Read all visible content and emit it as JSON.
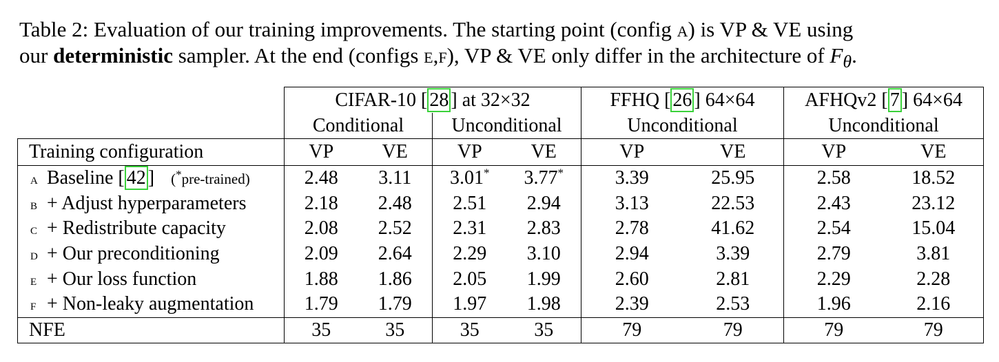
{
  "caption": {
    "p1": "Table 2: Evaluation of our training improvements. The starting point (config ",
    "letter_a": "a",
    "p2": ") is VP & VE using",
    "p3": "our ",
    "bold_word": "deterministic",
    "p4": " sampler. At the end (configs ",
    "letters_ef": "e,f",
    "p5": "), VP & VE only differ in the architecture of ",
    "f_theta": "F",
    "f_sub": "θ",
    "p6": "."
  },
  "groups": [
    {
      "name_pre": "CIFAR-10 ",
      "cite": "28",
      "name_post": " at 32×32"
    },
    {
      "name_pre": "FFHQ ",
      "cite": "26",
      "name_post": " 64×64"
    },
    {
      "name_pre": "AFHQv2 ",
      "cite": "7",
      "name_post": " 64×64"
    }
  ],
  "subgroups": [
    "Conditional",
    "Unconditional",
    "Unconditional",
    "Unconditional"
  ],
  "header": {
    "config_label": "Training configuration",
    "cols": [
      "VP",
      "VE",
      "VP",
      "VE",
      "VP",
      "VE",
      "VP",
      "VE"
    ]
  },
  "rows": [
    {
      "letter": "a",
      "label": "Baseline ",
      "cite": "42",
      "note": "(*pre-trained)",
      "values": [
        "2.48",
        "3.11",
        "3.01*",
        "3.77*",
        "3.39",
        "25.95",
        "2.58",
        "18.52"
      ],
      "bold": false
    },
    {
      "letter": "b",
      "label": "+ Adjust hyperparameters",
      "values": [
        "2.18",
        "2.48",
        "2.51",
        "2.94",
        "3.13",
        "22.53",
        "2.43",
        "23.12"
      ],
      "bold": false
    },
    {
      "letter": "c",
      "label": "+ Redistribute capacity",
      "values": [
        "2.08",
        "2.52",
        "2.31",
        "2.83",
        "2.78",
        "41.62",
        "2.54",
        "15.04"
      ],
      "bold": false
    },
    {
      "letter": "d",
      "label": "+ Our preconditioning",
      "values": [
        "2.09",
        "2.64",
        "2.29",
        "3.10",
        "2.94",
        "3.39",
        "2.79",
        "3.81"
      ],
      "bold": false
    },
    {
      "letter": "e",
      "label": "+ Our loss function",
      "values": [
        "1.88",
        "1.86",
        "2.05",
        "1.99",
        "2.60",
        "2.81",
        "2.29",
        "2.28"
      ],
      "bold": false
    },
    {
      "letter": "f",
      "label": "+ Non-leaky augmentation",
      "values": [
        "1.79",
        "1.79",
        "1.97",
        "1.98",
        "2.39",
        "2.53",
        "1.96",
        "2.16"
      ],
      "bold": true
    }
  ],
  "nfe": {
    "label": "NFE",
    "values": [
      "35",
      "35",
      "35",
      "35",
      "79",
      "79",
      "79",
      "79"
    ]
  }
}
